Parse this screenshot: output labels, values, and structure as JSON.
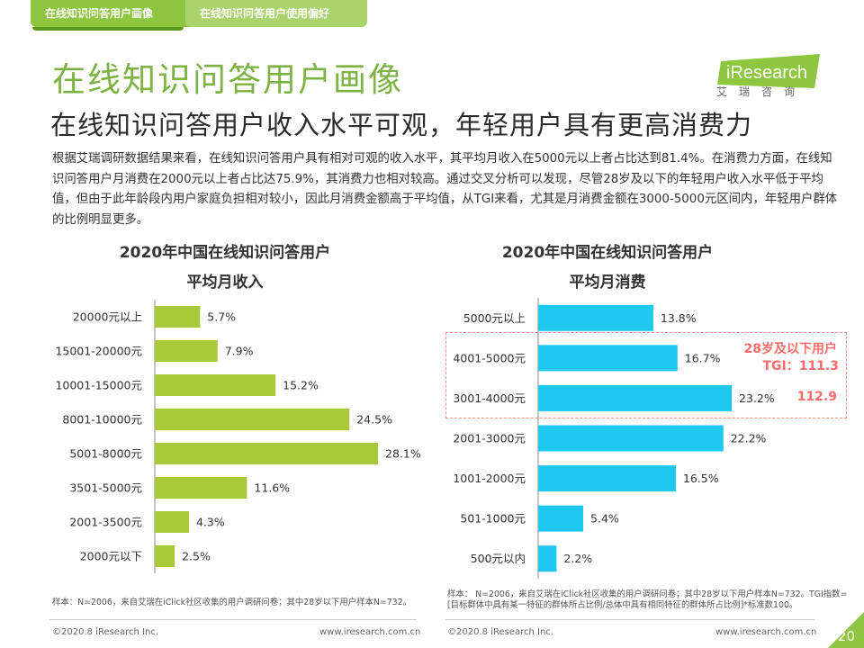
{
  "tabs": [
    {
      "label": "在线知识问答用户画像"
    },
    {
      "label": "在线知识问答用户使用偏好"
    }
  ],
  "page_title": "在线知识问答用户画像",
  "subtitle": "在线知识问答用户收入水平可观，年轻用户具有更高消费力",
  "body_paragraph": "根据艾瑞调研数据结果来看，在线知识问答用户具有相对可观的收入水平，其平均月收入在5000元以上者占比达到81.4%。在消费力方面，在线知识问答用户月消费在2000元以上者占比达75.9%，其消费力也相对较高。通过交叉分析可以发现，尽管28岁及以下的年轻用户收入水平低于平均值，但由于此年龄段内用户家庭负担相对较小，因此月消费金额高于平均值，从TGI来看，尤其是月消费金额在3000-5000元区间内，年轻用户群体的比例明显更多。",
  "logo": {
    "brand": "iResearch",
    "cn": "艾瑞咨询"
  },
  "chart_data": [
    {
      "type": "bar",
      "orientation": "horizontal",
      "title": "2020年中国在线知识问答用户",
      "subtitle": "平均月收入",
      "categories": [
        "20000元以上",
        "15001-20000元",
        "10001-15000元",
        "8001-10000元",
        "5001-8000元",
        "3501-5000元",
        "2001-3500元",
        "2000元以下"
      ],
      "values": [
        5.7,
        7.9,
        15.2,
        24.5,
        28.1,
        11.6,
        4.3,
        2.5
      ],
      "value_labels": [
        "5.7%",
        "7.9%",
        "15.2%",
        "24.5%",
        "28.1%",
        "11.6%",
        "4.3%",
        "2.5%"
      ],
      "unit": "%",
      "color": "#a8c93a"
    },
    {
      "type": "bar",
      "orientation": "horizontal",
      "title": "2020年中国在线知识问答用户",
      "subtitle": "平均月消费",
      "categories": [
        "5000元以上",
        "4001-5000元",
        "3001-4000元",
        "2001-3000元",
        "1001-2000元",
        "501-1000元",
        "500元以内"
      ],
      "values": [
        13.8,
        16.7,
        23.2,
        22.2,
        16.5,
        5.4,
        2.2
      ],
      "value_labels": [
        "13.8%",
        "16.7%",
        "23.2%",
        "22.2%",
        "16.5%",
        "5.4%",
        "2.2%"
      ],
      "unit": "%",
      "color": "#1ec8ef",
      "annotation": {
        "title": "28岁及以下用户",
        "tgi_label": "TGI：111.3",
        "tgi_second": "112.9"
      }
    }
  ],
  "notes": {
    "left": "样本：N=2006，来自艾瑞在iClick社区收集的用户调研问卷；其中28岁以下用户样本N=732。",
    "right": "样本： N=2006，来自艾瑞在iClick社区收集的用户调研问卷；其中28岁以下用户样本N=732。TGI指数= [目标群体中具有某一特征的群体所占比例/总体中具有相同特征的群体所占比例]*标准数100。"
  },
  "footer": {
    "left_copyright": "©2020.8 iResearch Inc.",
    "left_url": "www.iresearch.com.cn",
    "right_copyright": "©2020.8 iResearch Inc.",
    "right_url": "www.iresearch.com.cn",
    "page_number": "20"
  },
  "colors": {
    "accent": "#8dc63f",
    "income_bar": "#a8c93a",
    "spend_bar": "#1ec8ef",
    "highlight": "#ff6b6b"
  }
}
